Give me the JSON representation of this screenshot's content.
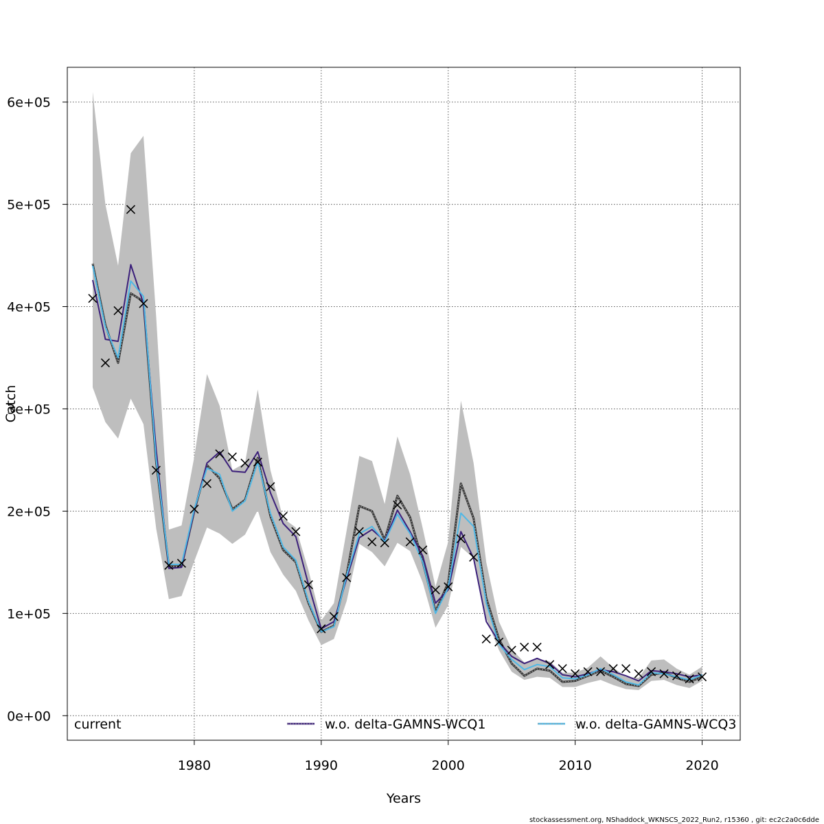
{
  "chart_data": {
    "type": "line",
    "xlabel": "Years",
    "ylabel": "Catch",
    "xlim": [
      1970,
      2023
    ],
    "ylim": [
      -24000,
      634000
    ],
    "x_ticks": [
      1980,
      1990,
      2000,
      2010,
      2020
    ],
    "x_tick_labels": [
      "1980",
      "1990",
      "2000",
      "2010",
      "2020"
    ],
    "y_ticks": [
      0,
      100000,
      200000,
      300000,
      400000,
      500000,
      600000
    ],
    "y_tick_labels": [
      "0e+00",
      "1e+05",
      "2e+05",
      "3e+05",
      "4e+05",
      "5e+05",
      "6e+05"
    ],
    "grid": true,
    "x": [
      1972,
      1973,
      1974,
      1975,
      1976,
      1977,
      1978,
      1979,
      1980,
      1981,
      1982,
      1983,
      1984,
      1985,
      1986,
      1987,
      1988,
      1989,
      1990,
      1991,
      1992,
      1993,
      1994,
      1995,
      1996,
      1997,
      1998,
      1999,
      2000,
      2001,
      2002,
      2003,
      2004,
      2005,
      2006,
      2007,
      2008,
      2009,
      2010,
      2011,
      2012,
      2013,
      2014,
      2015,
      2016,
      2017,
      2018,
      2019,
      2020
    ],
    "band": {
      "name": "current",
      "color": "#bebebe",
      "lower": [
        321000,
        287000,
        271000,
        310000,
        285000,
        183000,
        114000,
        117000,
        151000,
        184000,
        178000,
        168000,
        177000,
        201000,
        160000,
        138000,
        122000,
        93000,
        69000,
        75000,
        112000,
        168000,
        160000,
        146000,
        169000,
        161000,
        130000,
        86000,
        108000,
        165000,
        154000,
        95000,
        64000,
        43000,
        35000,
        38000,
        37000,
        28000,
        28000,
        32000,
        35000,
        30000,
        26000,
        25000,
        34000,
        35000,
        30000,
        27000,
        34000
      ],
      "upper": [
        610000,
        500000,
        440000,
        550000,
        567000,
        390000,
        182000,
        186000,
        253000,
        334000,
        303000,
        240000,
        247000,
        319000,
        240000,
        193000,
        184000,
        142000,
        93000,
        110000,
        181000,
        254000,
        249000,
        207000,
        273000,
        236000,
        183000,
        126000,
        170000,
        308000,
        247000,
        150000,
        92000,
        65000,
        52000,
        56000,
        53000,
        42000,
        42000,
        47000,
        58000,
        47000,
        38000,
        37000,
        54000,
        55000,
        46000,
        40000,
        48000
      ]
    },
    "series": [
      {
        "name": "current",
        "color": "#333333",
        "style": "solid",
        "values": [
          442000,
          382000,
          345000,
          413000,
          405000,
          248000,
          146000,
          146000,
          200000,
          245000,
          232000,
          202000,
          211000,
          252000,
          195000,
          162000,
          150000,
          110000,
          82000,
          88000,
          138000,
          205000,
          200000,
          172000,
          215000,
          194000,
          150000,
          102000,
          130000,
          227000,
          193000,
          115000,
          75000,
          51000,
          39000,
          46000,
          44000,
          33000,
          34000,
          39000,
          44000,
          38000,
          31000,
          29000,
          40000,
          42000,
          37000,
          33000,
          38000
        ]
      },
      {
        "name": "w.o. delta-GAMNS-WCQ1",
        "color": "#3b1f7a",
        "style": "solid",
        "values": [
          426000,
          368000,
          366000,
          441000,
          403000,
          260000,
          144000,
          145000,
          200000,
          247000,
          258000,
          239000,
          238000,
          258000,
          218000,
          188000,
          175000,
          128000,
          85000,
          92000,
          134000,
          174000,
          182000,
          171000,
          201000,
          180000,
          156000,
          110000,
          123000,
          180000,
          154000,
          92000,
          72000,
          58000,
          51000,
          56000,
          51000,
          40000,
          38000,
          41000,
          45000,
          43000,
          39000,
          34000,
          44000,
          43000,
          41000,
          38000,
          40000
        ]
      },
      {
        "name": "w.o. delta-GAMNS-WCQ3",
        "color": "#4fb8e6",
        "style": "solid",
        "values": [
          440000,
          380000,
          350000,
          425000,
          410000,
          250000,
          148000,
          148000,
          202000,
          242000,
          236000,
          200000,
          210000,
          248000,
          198000,
          165000,
          152000,
          112000,
          82000,
          87000,
          137000,
          178000,
          185000,
          170000,
          197000,
          178000,
          150000,
          100000,
          125000,
          198000,
          185000,
          110000,
          70000,
          55000,
          45000,
          50000,
          48000,
          37000,
          36000,
          40000,
          46000,
          40000,
          33000,
          30000,
          42000,
          41000,
          38000,
          35000,
          40000
        ]
      }
    ],
    "observed": {
      "marker": "x",
      "values": [
        408000,
        345000,
        396000,
        495000,
        403000,
        240000,
        147000,
        149000,
        202000,
        227000,
        256000,
        253000,
        247000,
        248000,
        224000,
        195000,
        180000,
        128000,
        85000,
        97000,
        135000,
        180000,
        170000,
        169000,
        206000,
        170000,
        162000,
        123000,
        126000,
        173000,
        155000,
        75000,
        72000,
        64000,
        67000,
        67000,
        50000,
        46000,
        41000,
        43000,
        43000,
        46000,
        46000,
        41000,
        43000,
        41000,
        39000,
        36000,
        38000
      ]
    },
    "legend": {
      "placement": "bottom",
      "items": [
        {
          "label": "current",
          "kind": "text"
        },
        {
          "label": "w.o. delta-GAMNS-WCQ1",
          "kind": "line",
          "color": "#3b1f7a"
        },
        {
          "label": "w.o. delta-GAMNS-WCQ3",
          "kind": "line",
          "color": "#4fb8e6"
        }
      ]
    }
  },
  "footer": "stockassessment.org, NShaddock_WKNSCS_2022_Run2, r15360 , git: ec2c2a0c6dde"
}
